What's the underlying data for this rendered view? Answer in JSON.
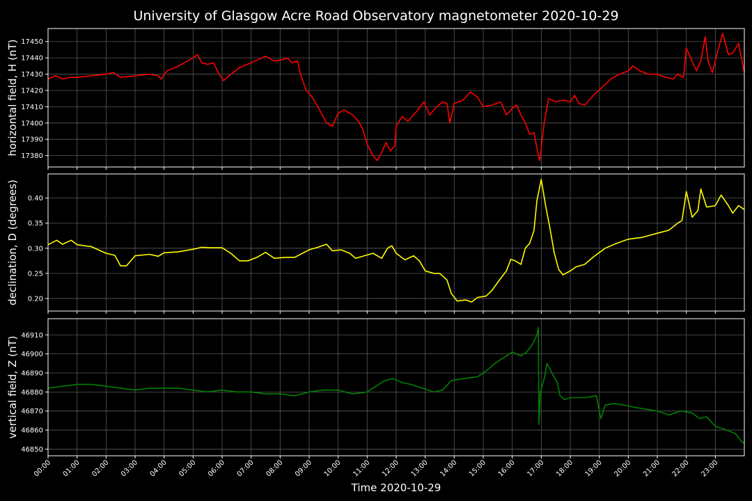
{
  "chart_data": {
    "type": "line",
    "title": "University of Glasgow Acre Road Observatory magnetometer 2020-10-29",
    "xlabel": "Time 2020-10-29",
    "x_tick_labels": [
      "00:00",
      "01:00",
      "02:00",
      "03:00",
      "04:00",
      "05:00",
      "06:00",
      "07:00",
      "08:00",
      "09:00",
      "10:00",
      "11:00",
      "12:00",
      "13:00",
      "14:00",
      "15:00",
      "16:00",
      "17:00",
      "18:00",
      "19:00",
      "20:00",
      "21:00",
      "22:00",
      "23:00"
    ],
    "xlim_hours": [
      0,
      24
    ],
    "grid": true,
    "panels": [
      {
        "name": "H",
        "ylabel": "horizontal field, H (nT)",
        "color": "#ff0000",
        "ylim": [
          17373,
          17458
        ],
        "yticks": [
          17380,
          17390,
          17400,
          17410,
          17420,
          17430,
          17440,
          17450
        ],
        "ytick_labels": [
          "17380",
          "17390",
          "17400",
          "17410",
          "17420",
          "17430",
          "17440",
          "17450"
        ],
        "points": [
          [
            0.0,
            17427
          ],
          [
            0.25,
            17429
          ],
          [
            0.5,
            17427
          ],
          [
            0.75,
            17428
          ],
          [
            1.0,
            17428
          ],
          [
            1.5,
            17429
          ],
          [
            2.0,
            17430
          ],
          [
            2.25,
            17431
          ],
          [
            2.5,
            17428
          ],
          [
            3.0,
            17429
          ],
          [
            3.5,
            17430
          ],
          [
            3.8,
            17429
          ],
          [
            3.9,
            17427
          ],
          [
            4.1,
            17432
          ],
          [
            4.5,
            17435
          ],
          [
            5.0,
            17440
          ],
          [
            5.15,
            17442
          ],
          [
            5.3,
            17437
          ],
          [
            5.5,
            17436
          ],
          [
            5.7,
            17437
          ],
          [
            5.9,
            17430
          ],
          [
            6.05,
            17426
          ],
          [
            6.3,
            17430
          ],
          [
            6.6,
            17434
          ],
          [
            7.0,
            17437
          ],
          [
            7.5,
            17441
          ],
          [
            7.8,
            17438
          ],
          [
            8.1,
            17439
          ],
          [
            8.25,
            17440
          ],
          [
            8.4,
            17437
          ],
          [
            8.6,
            17438
          ],
          [
            8.7,
            17430
          ],
          [
            8.9,
            17420
          ],
          [
            9.1,
            17416
          ],
          [
            9.3,
            17410
          ],
          [
            9.6,
            17400
          ],
          [
            9.8,
            17398
          ],
          [
            10.0,
            17406
          ],
          [
            10.2,
            17408
          ],
          [
            10.5,
            17405
          ],
          [
            10.7,
            17401
          ],
          [
            10.85,
            17396
          ],
          [
            11.0,
            17387
          ],
          [
            11.2,
            17380
          ],
          [
            11.35,
            17377
          ],
          [
            11.5,
            17382
          ],
          [
            11.65,
            17388
          ],
          [
            11.8,
            17383
          ],
          [
            11.95,
            17386
          ],
          [
            12.0,
            17398
          ],
          [
            12.2,
            17404
          ],
          [
            12.4,
            17401
          ],
          [
            12.7,
            17407
          ],
          [
            12.95,
            17413
          ],
          [
            13.15,
            17405
          ],
          [
            13.4,
            17410
          ],
          [
            13.6,
            17413
          ],
          [
            13.75,
            17412
          ],
          [
            13.85,
            17400
          ],
          [
            14.0,
            17412
          ],
          [
            14.3,
            17414
          ],
          [
            14.55,
            17419
          ],
          [
            14.8,
            17416
          ],
          [
            15.0,
            17410
          ],
          [
            15.3,
            17411
          ],
          [
            15.6,
            17413
          ],
          [
            15.8,
            17405
          ],
          [
            16.0,
            17409
          ],
          [
            16.15,
            17411
          ],
          [
            16.3,
            17405
          ],
          [
            16.45,
            17400
          ],
          [
            16.6,
            17393
          ],
          [
            16.75,
            17394
          ],
          [
            16.9,
            17380
          ],
          [
            16.95,
            17377
          ],
          [
            17.1,
            17400
          ],
          [
            17.25,
            17415
          ],
          [
            17.5,
            17413
          ],
          [
            17.75,
            17414
          ],
          [
            18.0,
            17413
          ],
          [
            18.15,
            17417
          ],
          [
            18.3,
            17412
          ],
          [
            18.5,
            17411
          ],
          [
            18.8,
            17417
          ],
          [
            19.1,
            17422
          ],
          [
            19.4,
            17427
          ],
          [
            19.7,
            17430
          ],
          [
            20.0,
            17432
          ],
          [
            20.15,
            17435
          ],
          [
            20.4,
            17432
          ],
          [
            20.7,
            17430
          ],
          [
            21.0,
            17430
          ],
          [
            21.3,
            17428
          ],
          [
            21.55,
            17427
          ],
          [
            21.7,
            17430
          ],
          [
            21.9,
            17428
          ],
          [
            22.0,
            17446
          ],
          [
            22.2,
            17438
          ],
          [
            22.35,
            17432
          ],
          [
            22.5,
            17438
          ],
          [
            22.65,
            17453
          ],
          [
            22.75,
            17438
          ],
          [
            22.9,
            17431
          ],
          [
            23.05,
            17442
          ],
          [
            23.25,
            17455
          ],
          [
            23.45,
            17442
          ],
          [
            23.6,
            17443
          ],
          [
            23.8,
            17449
          ],
          [
            23.9,
            17440
          ],
          [
            24.0,
            17431
          ]
        ]
      },
      {
        "name": "D",
        "ylabel": "declination, D (degrees)",
        "color": "#ffff00",
        "ylim": [
          0.175,
          0.448
        ],
        "yticks": [
          0.2,
          0.25,
          0.3,
          0.35,
          0.4
        ],
        "ytick_labels": [
          "0.20",
          "0.25",
          "0.30",
          "0.35",
          "0.40"
        ],
        "points": [
          [
            0.0,
            0.307
          ],
          [
            0.3,
            0.316
          ],
          [
            0.5,
            0.308
          ],
          [
            0.8,
            0.316
          ],
          [
            1.0,
            0.307
          ],
          [
            1.5,
            0.303
          ],
          [
            2.0,
            0.29
          ],
          [
            2.3,
            0.286
          ],
          [
            2.5,
            0.265
          ],
          [
            2.7,
            0.265
          ],
          [
            3.0,
            0.285
          ],
          [
            3.5,
            0.288
          ],
          [
            3.8,
            0.284
          ],
          [
            4.0,
            0.291
          ],
          [
            4.5,
            0.293
          ],
          [
            5.0,
            0.298
          ],
          [
            5.3,
            0.302
          ],
          [
            5.6,
            0.301
          ],
          [
            6.0,
            0.301
          ],
          [
            6.3,
            0.29
          ],
          [
            6.6,
            0.275
          ],
          [
            6.9,
            0.275
          ],
          [
            7.2,
            0.282
          ],
          [
            7.5,
            0.292
          ],
          [
            7.8,
            0.28
          ],
          [
            8.2,
            0.282
          ],
          [
            8.5,
            0.282
          ],
          [
            9.0,
            0.297
          ],
          [
            9.3,
            0.302
          ],
          [
            9.6,
            0.308
          ],
          [
            9.8,
            0.295
          ],
          [
            10.1,
            0.297
          ],
          [
            10.4,
            0.29
          ],
          [
            10.6,
            0.28
          ],
          [
            10.9,
            0.285
          ],
          [
            11.2,
            0.29
          ],
          [
            11.5,
            0.28
          ],
          [
            11.7,
            0.3
          ],
          [
            11.85,
            0.305
          ],
          [
            12.0,
            0.29
          ],
          [
            12.3,
            0.277
          ],
          [
            12.6,
            0.285
          ],
          [
            12.8,
            0.275
          ],
          [
            13.0,
            0.255
          ],
          [
            13.3,
            0.25
          ],
          [
            13.5,
            0.25
          ],
          [
            13.75,
            0.237
          ],
          [
            13.9,
            0.21
          ],
          [
            14.1,
            0.195
          ],
          [
            14.4,
            0.197
          ],
          [
            14.6,
            0.193
          ],
          [
            14.8,
            0.202
          ],
          [
            15.1,
            0.205
          ],
          [
            15.3,
            0.216
          ],
          [
            15.6,
            0.24
          ],
          [
            15.8,
            0.255
          ],
          [
            15.95,
            0.278
          ],
          [
            16.1,
            0.275
          ],
          [
            16.3,
            0.268
          ],
          [
            16.45,
            0.3
          ],
          [
            16.6,
            0.31
          ],
          [
            16.75,
            0.335
          ],
          [
            16.85,
            0.395
          ],
          [
            17.0,
            0.437
          ],
          [
            17.15,
            0.385
          ],
          [
            17.3,
            0.34
          ],
          [
            17.45,
            0.29
          ],
          [
            17.6,
            0.258
          ],
          [
            17.75,
            0.247
          ],
          [
            18.0,
            0.255
          ],
          [
            18.2,
            0.263
          ],
          [
            18.5,
            0.268
          ],
          [
            18.8,
            0.283
          ],
          [
            19.2,
            0.3
          ],
          [
            19.6,
            0.31
          ],
          [
            20.0,
            0.318
          ],
          [
            20.5,
            0.322
          ],
          [
            21.0,
            0.33
          ],
          [
            21.4,
            0.336
          ],
          [
            21.7,
            0.35
          ],
          [
            21.85,
            0.355
          ],
          [
            22.0,
            0.413
          ],
          [
            22.2,
            0.362
          ],
          [
            22.4,
            0.375
          ],
          [
            22.5,
            0.418
          ],
          [
            22.7,
            0.382
          ],
          [
            23.0,
            0.385
          ],
          [
            23.2,
            0.406
          ],
          [
            23.45,
            0.385
          ],
          [
            23.6,
            0.37
          ],
          [
            23.8,
            0.385
          ],
          [
            24.0,
            0.377
          ]
        ]
      },
      {
        "name": "Z",
        "ylabel": "vertical field, Z (nT)",
        "color": "#008000",
        "ylim": [
          46846.5,
          46918.5
        ],
        "yticks": [
          46850,
          46860,
          46870,
          46880,
          46890,
          46900,
          46910
        ],
        "ytick_labels": [
          "46850",
          "46860",
          "46870",
          "46880",
          "46890",
          "46900",
          "46910"
        ],
        "points": [
          [
            0.0,
            46882
          ],
          [
            0.5,
            46883
          ],
          [
            1.0,
            46884
          ],
          [
            1.5,
            46884
          ],
          [
            2.0,
            46883
          ],
          [
            2.5,
            46882
          ],
          [
            3.0,
            46881
          ],
          [
            3.5,
            46882
          ],
          [
            4.0,
            46882
          ],
          [
            4.5,
            46882
          ],
          [
            5.0,
            46881
          ],
          [
            5.5,
            46880
          ],
          [
            6.0,
            46881
          ],
          [
            6.5,
            46880
          ],
          [
            7.0,
            46880
          ],
          [
            7.5,
            46879
          ],
          [
            8.0,
            46879
          ],
          [
            8.5,
            46878
          ],
          [
            9.0,
            46880
          ],
          [
            9.5,
            46881
          ],
          [
            10.0,
            46881
          ],
          [
            10.5,
            46879
          ],
          [
            11.0,
            46880
          ],
          [
            11.3,
            46883
          ],
          [
            11.6,
            46886
          ],
          [
            11.9,
            46887
          ],
          [
            12.2,
            46885
          ],
          [
            12.5,
            46884
          ],
          [
            12.9,
            46882
          ],
          [
            13.3,
            46880
          ],
          [
            13.6,
            46881
          ],
          [
            13.9,
            46886
          ],
          [
            14.3,
            46887
          ],
          [
            14.8,
            46888
          ],
          [
            15.1,
            46891
          ],
          [
            15.4,
            46895
          ],
          [
            15.8,
            46899
          ],
          [
            16.0,
            46901
          ],
          [
            16.3,
            46899
          ],
          [
            16.5,
            46901
          ],
          [
            16.7,
            46905
          ],
          [
            16.85,
            46910
          ],
          [
            16.9,
            46914
          ],
          [
            16.92,
            46863
          ],
          [
            16.97,
            46880
          ],
          [
            17.1,
            46887
          ],
          [
            17.2,
            46895
          ],
          [
            17.4,
            46889
          ],
          [
            17.55,
            46885
          ],
          [
            17.65,
            46878
          ],
          [
            17.8,
            46876
          ],
          [
            18.0,
            46877
          ],
          [
            18.5,
            46877
          ],
          [
            18.9,
            46878
          ],
          [
            19.05,
            46866
          ],
          [
            19.2,
            46873
          ],
          [
            19.5,
            46874
          ],
          [
            19.9,
            46873
          ],
          [
            20.2,
            46872
          ],
          [
            20.6,
            46871
          ],
          [
            21.0,
            46870
          ],
          [
            21.4,
            46868
          ],
          [
            21.8,
            46870
          ],
          [
            22.2,
            46869
          ],
          [
            22.45,
            46866
          ],
          [
            22.7,
            46867
          ],
          [
            23.0,
            46862
          ],
          [
            23.4,
            46860
          ],
          [
            23.7,
            46858
          ],
          [
            23.9,
            46854
          ],
          [
            24.0,
            46853
          ]
        ]
      }
    ]
  }
}
